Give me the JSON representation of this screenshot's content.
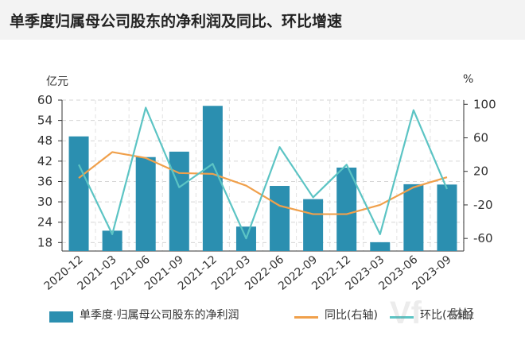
{
  "title": "单季度归属母公司股东的净利润及同比、环比增速",
  "chart_data": {
    "type": "bar",
    "left_unit": "亿元",
    "right_unit": "%",
    "left_ticks": [
      "60",
      "54",
      "48",
      "42",
      "36",
      "30",
      "24",
      "18"
    ],
    "right_ticks": [
      "100",
      "60",
      "20",
      "-20",
      "-60"
    ],
    "ylim_left": [
      15.5,
      60
    ],
    "ylim_right": [
      -75,
      105
    ],
    "categories": [
      "2020-12",
      "2021-03",
      "2021-06",
      "2021-09",
      "2021-12",
      "2022-03",
      "2022-06",
      "2022-09",
      "2022-12",
      "2023-03",
      "2023-06",
      "2023-09"
    ],
    "series": [
      {
        "name": "单季度·归属母公司股东的净利润",
        "kind": "bar",
        "axis": "left",
        "color": "#2b8fb0",
        "values": [
          49.3,
          21.5,
          43.2,
          44.8,
          58.3,
          22.7,
          34.7,
          30.8,
          40.1,
          18.1,
          35.2,
          35.1
        ]
      },
      {
        "name": "同比(右轴)",
        "kind": "line",
        "axis": "right",
        "color": "#f0a04b",
        "values": [
          12,
          43,
          36,
          18,
          17,
          3,
          -21,
          -31,
          -31,
          -20,
          1,
          13
        ]
      },
      {
        "name": "环比(右轴)",
        "kind": "line",
        "axis": "right",
        "color": "#5cc4c4",
        "values": [
          28,
          -55,
          96,
          1,
          29,
          -60,
          49,
          -11,
          28,
          -55,
          93,
          -1
        ]
      }
    ]
  },
  "watermark": "财经"
}
